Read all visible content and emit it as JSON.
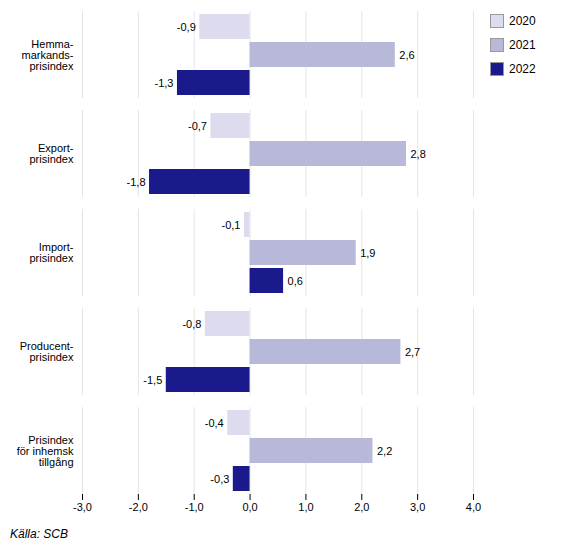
{
  "chart_data": {
    "type": "bar",
    "orientation": "horizontal",
    "categories": [
      "Hemma-\nmarkands-\nprisindex",
      "Export-\nprisindex",
      "Import-\nprisindex",
      "Producent-\nprisindex",
      "Prisindex\nför inhemsk\ntillgång"
    ],
    "series": [
      {
        "name": "2020",
        "color": "#dcdcee",
        "values": [
          -0.9,
          -0.7,
          -0.1,
          -0.8,
          -0.4
        ],
        "value_labels": [
          "-0,9",
          "-0,7",
          "-0,1",
          "-0,8",
          "-0,4"
        ]
      },
      {
        "name": "2021",
        "color": "#b8b8d8",
        "values": [
          2.6,
          2.8,
          1.9,
          2.7,
          2.2
        ],
        "value_labels": [
          "2,6",
          "2,8",
          "1,9",
          "2,7",
          "2,2"
        ]
      },
      {
        "name": "2022",
        "color": "#1a1a8c",
        "values": [
          -1.3,
          -1.8,
          0.6,
          -1.5,
          -0.3
        ],
        "value_labels": [
          "-1,3",
          "-1,8",
          "0,6",
          "-1,5",
          "-0,3"
        ]
      }
    ],
    "xlim": [
      -3.0,
      4.0
    ],
    "xticks": [
      {
        "value": -3.0,
        "label": "-3,0"
      },
      {
        "value": -2.0,
        "label": "-2,0"
      },
      {
        "value": -1.0,
        "label": "-1,0"
      },
      {
        "value": 0.0,
        "label": "0,0"
      },
      {
        "value": 1.0,
        "label": "1,0"
      },
      {
        "value": 2.0,
        "label": "2,0"
      },
      {
        "value": 3.0,
        "label": "3,0"
      },
      {
        "value": 4.0,
        "label": "4,0"
      }
    ],
    "grid": true,
    "legend": "upper right",
    "data_labels": true,
    "annotations": [
      "Källa: SCB"
    ]
  }
}
